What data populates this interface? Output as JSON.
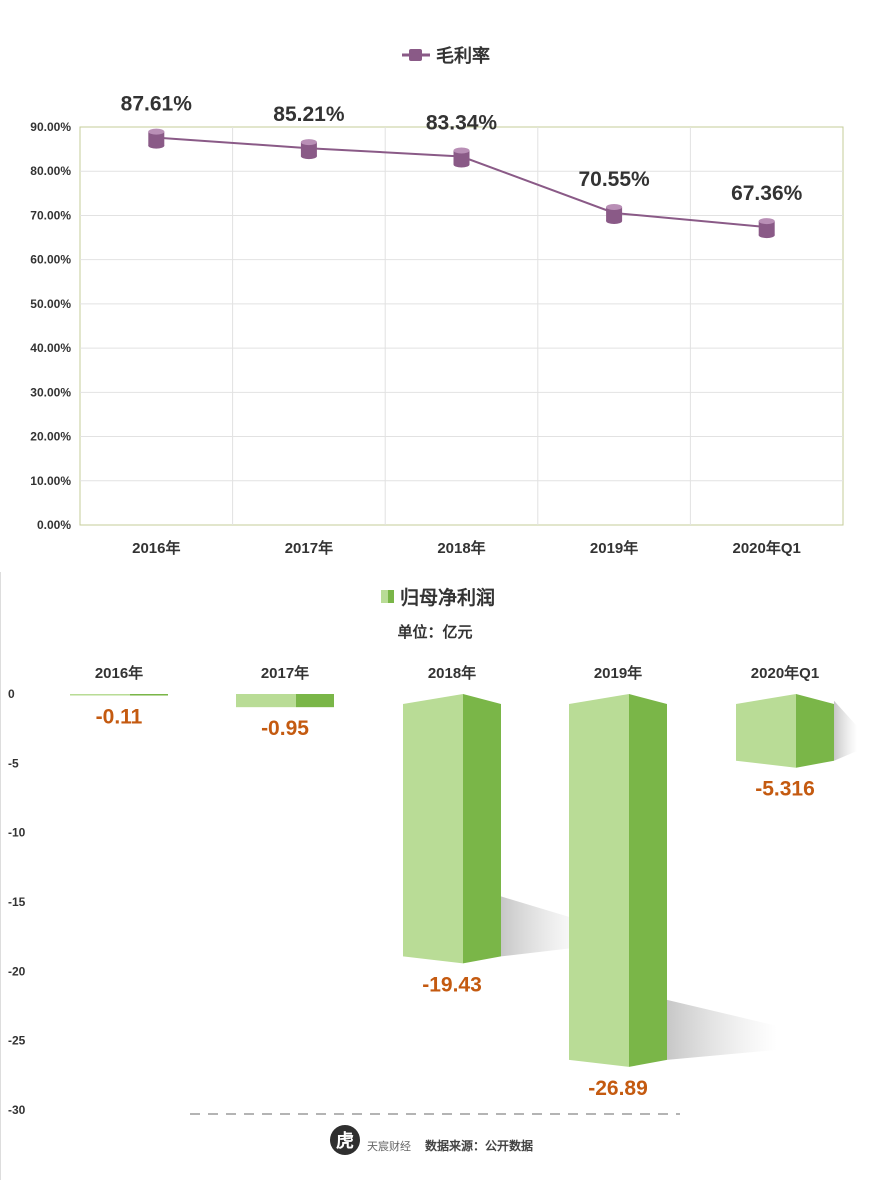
{
  "chart_data": [
    {
      "type": "line",
      "legend": "毛利率",
      "legend_position": "top-center",
      "categories": [
        "2016年",
        "2017年",
        "2018年",
        "2019年",
        "2020年Q1"
      ],
      "series": [
        {
          "name": "毛利率",
          "values": [
            87.61,
            85.21,
            83.34,
            70.55,
            67.36
          ],
          "color": "#8a5a87"
        }
      ],
      "data_labels": [
        "87.61%",
        "85.21%",
        "83.34%",
        "70.55%",
        "67.36%"
      ],
      "y_ticks": [
        "0.00%",
        "10.00%",
        "20.00%",
        "30.00%",
        "40.00%",
        "50.00%",
        "60.00%",
        "70.00%",
        "80.00%",
        "90.00%"
      ],
      "ylim": [
        0,
        90
      ],
      "grid": true,
      "plot_border_color": "#c5cc9a"
    },
    {
      "type": "bar",
      "legend": "归母净利润",
      "legend_position": "top-center",
      "unit": "单位：亿元",
      "categories": [
        "2016年",
        "2017年",
        "2018年",
        "2019年",
        "2020年Q1"
      ],
      "series": [
        {
          "name": "归母净利润",
          "values": [
            -0.11,
            -0.95,
            -19.43,
            -26.89,
            -5.316
          ],
          "color": "#7ab648"
        }
      ],
      "data_labels": [
        "-0.11",
        "-0.95",
        "-19.43",
        "-26.89",
        "-5.316"
      ],
      "y_ticks": [
        "0",
        "-5",
        "-10",
        "-15",
        "-20",
        "-25",
        "-30"
      ],
      "ylim": [
        -30,
        0
      ],
      "grid": false
    }
  ],
  "footer": {
    "logo_text": "天宸财经",
    "logo_glyph": "虎",
    "source": "数据来源：公开数据"
  }
}
